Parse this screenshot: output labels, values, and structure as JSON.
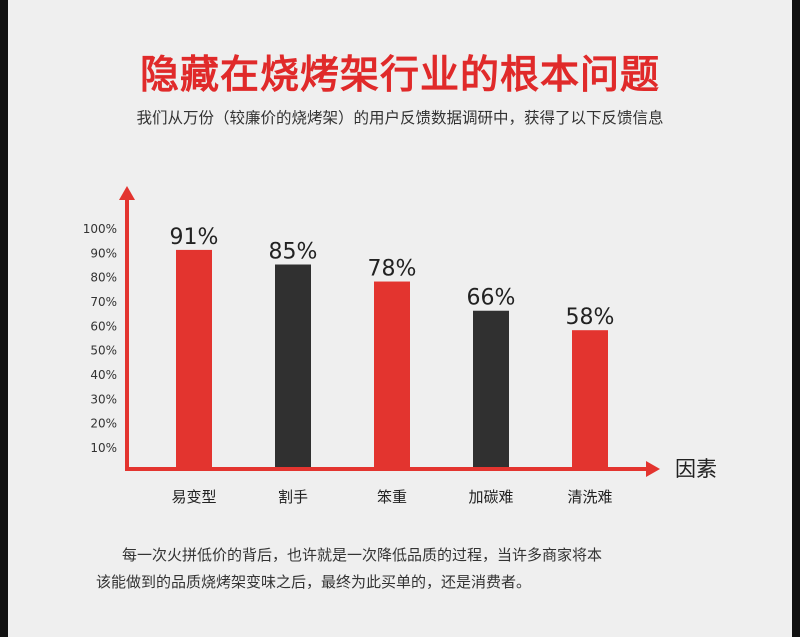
{
  "title": "隐藏在烧烤架行业的根本问题",
  "subtitle": "我们从万份（较廉价的烧烤架）的用户反馈数据调研中，获得了以下反馈信息",
  "footer": {
    "line1": "每一次火拼低价的背后，也许就是一次降低品质的过程，当许多商家将本",
    "line2": "该能做到的品质烧烤架变味之后，最终为此买单的，还是消费者。"
  },
  "colors": {
    "accent": "#e3342f",
    "dark": "#303030",
    "background": "#efefef"
  },
  "chart_data": {
    "type": "bar",
    "title": "",
    "xlabel": "因素",
    "ylabel": "",
    "ylim": [
      0,
      100
    ],
    "yticks": [
      "10%",
      "20%",
      "30%",
      "40%",
      "50%",
      "60%",
      "70%",
      "80%",
      "90%",
      "100%"
    ],
    "categories": [
      "易变型",
      "割手",
      "笨重",
      "加碳难",
      "清洗难"
    ],
    "values": [
      91,
      85,
      78,
      66,
      58
    ],
    "data_labels": [
      "91%",
      "85%",
      "78%",
      "66%",
      "58%"
    ],
    "bar_colors": [
      "#e3342f",
      "#303030",
      "#e3342f",
      "#303030",
      "#e3342f"
    ],
    "grid": false,
    "legend": "none"
  }
}
